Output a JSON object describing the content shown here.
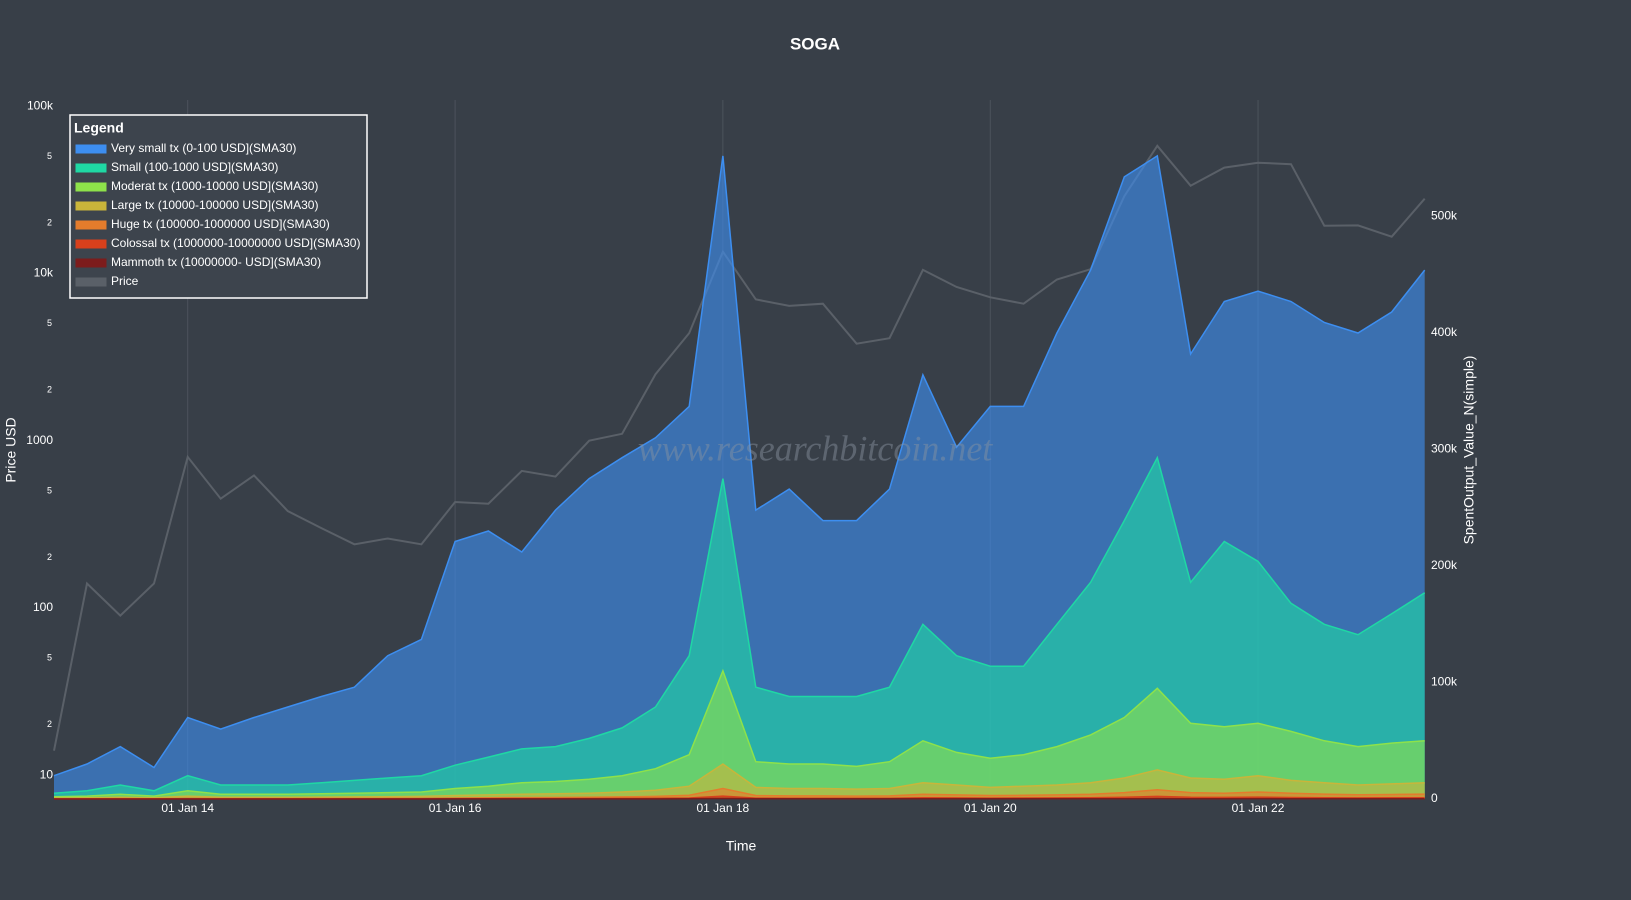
{
  "chart_data": {
    "type": "area",
    "title": "SOGA",
    "xlabel": "Time",
    "ylabel": "Price USD",
    "y2label": "SpentOutput_Value_N(simple)",
    "watermark": "www.researchbitcoin.net",
    "legend_title": "Legend",
    "legend": "upper left",
    "log_y": true,
    "xlim": [
      "2013-01-01",
      "2023-04-10"
    ],
    "ylim": [
      7.2,
      109000
    ],
    "y2lim": [
      0,
      600000
    ],
    "xticks": [
      {
        "value": "2014-01-01",
        "label": "01 Jan 14"
      },
      {
        "value": "2016-01-01",
        "label": "01 Jan 16"
      },
      {
        "value": "2018-01-01",
        "label": "01 Jan 18"
      },
      {
        "value": "2020-01-01",
        "label": "01 Jan 20"
      },
      {
        "value": "2022-01-01",
        "label": "01 Jan 22"
      }
    ],
    "yticks": [
      10,
      {
        "value": 20,
        "label": "2"
      },
      {
        "value": 50,
        "label": "5"
      },
      100,
      {
        "value": 200,
        "label": "2"
      },
      {
        "value": 500,
        "label": "5"
      },
      1000,
      {
        "value": 2000,
        "label": "2"
      },
      {
        "value": 5000,
        "label": "5"
      },
      {
        "value": 10000,
        "label": "10k"
      },
      {
        "value": 20000,
        "label": "2"
      },
      {
        "value": 50000,
        "label": "5"
      },
      {
        "value": 100000,
        "label": "100k"
      }
    ],
    "y2ticks": [
      0,
      {
        "value": 100000,
        "label": "100k"
      },
      {
        "value": 200000,
        "label": "200k"
      },
      {
        "value": 300000,
        "label": "300k"
      },
      {
        "value": 400000,
        "label": "400k"
      },
      {
        "value": 500000,
        "label": "500k"
      }
    ],
    "x": [
      "2013-01-01",
      "2013-04-01",
      "2013-07-01",
      "2013-10-01",
      "2014-01-01",
      "2014-04-01",
      "2014-07-01",
      "2014-10-01",
      "2015-01-01",
      "2015-04-01",
      "2015-07-01",
      "2015-10-01",
      "2016-01-01",
      "2016-04-01",
      "2016-07-01",
      "2016-10-01",
      "2017-01-01",
      "2017-04-01",
      "2017-07-01",
      "2017-10-01",
      "2018-01-01",
      "2018-04-01",
      "2018-07-01",
      "2018-10-01",
      "2019-01-01",
      "2019-04-01",
      "2019-07-01",
      "2019-10-01",
      "2020-01-01",
      "2020-04-01",
      "2020-07-01",
      "2020-10-01",
      "2021-01-01",
      "2021-04-01",
      "2021-07-01",
      "2021-10-01",
      "2022-01-01",
      "2022-04-01",
      "2022-07-01",
      "2022-10-01",
      "2023-01-01",
      "2023-04-01"
    ],
    "series": [
      {
        "name": "Very small tx (0-100 USD](SMA30)",
        "color": "#3d8ef0",
        "axis": "y2",
        "values": [
          20000,
          30000,
          45000,
          27000,
          70000,
          60000,
          70000,
          79000,
          88000,
          96000,
          123000,
          137000,
          221000,
          230000,
          212000,
          248000,
          275000,
          293000,
          310000,
          337000,
          552000,
          248000,
          266000,
          239000,
          239000,
          266000,
          364000,
          302000,
          337000,
          337000,
          400000,
          454000,
          534000,
          552000,
          382000,
          427000,
          436000,
          427000,
          409000,
          400000,
          418000,
          454000
        ]
      },
      {
        "name": "Small (100-1000 USD](SMA30)",
        "color": "#1fd8a4",
        "axis": "y2",
        "values": [
          5000,
          7000,
          12000,
          7000,
          20000,
          12000,
          12000,
          12000,
          14000,
          16000,
          18000,
          20000,
          29000,
          36000,
          43000,
          45000,
          52000,
          61000,
          79000,
          123000,
          275000,
          96000,
          88000,
          88000,
          88000,
          96000,
          150000,
          123000,
          114000,
          114000,
          150000,
          186000,
          239000,
          293000,
          186000,
          221000,
          204000,
          168000,
          150000,
          141000,
          159000,
          177000
        ]
      },
      {
        "name": "Moderat tx (1000-10000 USD](SMA30)",
        "color": "#8ee24a",
        "axis": "y2",
        "values": [
          2000,
          2500,
          4000,
          2500,
          7000,
          4000,
          4000,
          4000,
          4500,
          5000,
          5500,
          6000,
          9000,
          11000,
          14000,
          15000,
          17000,
          20000,
          26000,
          38000,
          110000,
          32000,
          30000,
          30000,
          28000,
          32000,
          50000,
          40000,
          35000,
          38000,
          45000,
          55000,
          70000,
          95000,
          65000,
          62000,
          65000,
          58000,
          50000,
          45000,
          48000,
          50000
        ]
      },
      {
        "name": "Large tx (10000-100000 USD](SMA30)",
        "color": "#c9b53a",
        "axis": "y2",
        "values": [
          800,
          1000,
          1500,
          1000,
          2500,
          1500,
          1500,
          1500,
          1600,
          1800,
          2000,
          2200,
          3000,
          3500,
          4000,
          4500,
          5000,
          6000,
          7500,
          11000,
          30000,
          10000,
          9000,
          9000,
          8500,
          9000,
          14000,
          12000,
          10000,
          11000,
          12000,
          14000,
          18000,
          25000,
          18000,
          17000,
          20000,
          16000,
          14000,
          12000,
          13000,
          14000
        ]
      },
      {
        "name": "Huge tx (100000-1000000 USD](SMA30)",
        "color": "#e47c2c",
        "axis": "y2",
        "values": [
          200,
          300,
          400,
          300,
          700,
          400,
          400,
          400,
          500,
          500,
          600,
          700,
          900,
          1000,
          1200,
          1300,
          1500,
          1800,
          2200,
          3300,
          9000,
          3000,
          2700,
          2700,
          2500,
          2700,
          4000,
          3500,
          3000,
          3200,
          3500,
          4000,
          5500,
          8000,
          5500,
          5000,
          6000,
          5000,
          4200,
          3600,
          3900,
          4200
        ]
      },
      {
        "name": "Colossal tx (1000000-10000000 USD](SMA30)",
        "color": "#d8401c",
        "axis": "y2",
        "values": [
          50,
          80,
          100,
          80,
          200,
          100,
          100,
          100,
          120,
          130,
          150,
          180,
          250,
          280,
          320,
          350,
          400,
          500,
          600,
          900,
          2500,
          800,
          700,
          700,
          650,
          700,
          1100,
          950,
          800,
          850,
          950,
          1100,
          1500,
          2200,
          1500,
          1400,
          1600,
          1300,
          1100,
          950,
          1000,
          1100
        ]
      },
      {
        "name": "Mammoth tx (10000000- USD](SMA30)",
        "color": "#7c1c1c",
        "axis": "y2",
        "values": [
          10,
          16,
          20,
          16,
          40,
          20,
          20,
          20,
          24,
          26,
          30,
          36,
          50,
          56,
          64,
          70,
          80,
          100,
          120,
          180,
          500,
          160,
          140,
          140,
          130,
          140,
          220,
          190,
          160,
          170,
          190,
          220,
          300,
          440,
          300,
          280,
          320,
          260,
          220,
          190,
          200,
          220
        ]
      },
      {
        "name": "Price",
        "color": "#5a6068",
        "axis": "y",
        "values": [
          14,
          140,
          90,
          140,
          800,
          450,
          620,
          380,
          300,
          240,
          260,
          240,
          430,
          420,
          660,
          610,
          1000,
          1100,
          2500,
          4400,
          13500,
          7000,
          6400,
          6600,
          3800,
          4100,
          10500,
          8300,
          7200,
          6600,
          9200,
          10600,
          29000,
          58000,
          33500,
          43000,
          46000,
          45000,
          19300,
          19400,
          16600,
          28000
        ]
      }
    ]
  }
}
